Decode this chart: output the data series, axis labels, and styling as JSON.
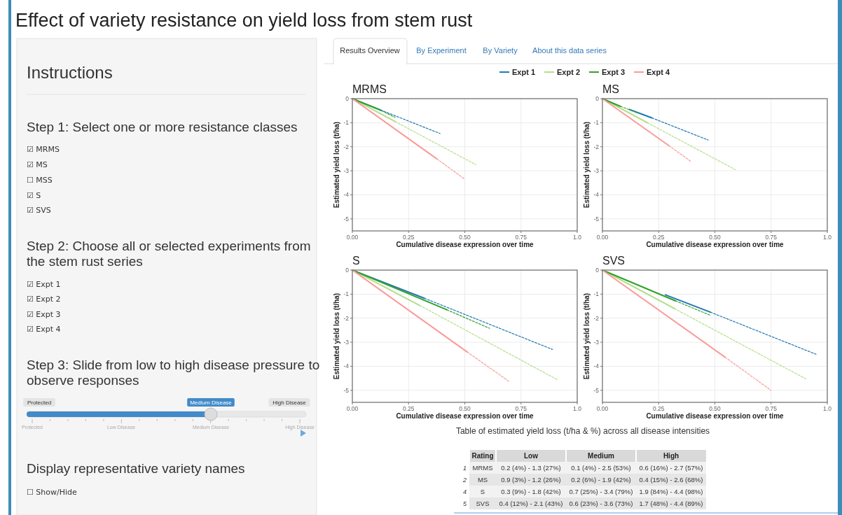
{
  "chart_data": [
    {
      "type": "other",
      "title": "Effect of variety resistance on yield loss from stem rust",
      "annotations": [
        "Instructions",
        "Step 1: Select one or more resistance classes",
        "☑ MRMS",
        "☑ MS",
        "☐ MSS",
        "☑ S",
        "☑ SVS",
        "Step 2: Choose all or selected experiments from the stem rust series",
        "☑ Expt 1",
        "☑ Expt 2",
        "☑ Expt 3",
        "☑ Expt 4",
        "Step 3: Slide from low to high disease pressure to observe responses",
        "Protected",
        "Medium Disease",
        "High Disease",
        "Protected",
        "Low Disease",
        "Medium Disease",
        "High Disease",
        "Display representative variety names",
        "☐ Show/Hide",
        "Results Overview",
        "By Experiment",
        "By Variety",
        "About this data series"
      ]
    },
    {
      "type": "line",
      "title": "MRMS",
      "xlabel": "Cumulative disease expression over time",
      "ylabel": "Estimated yield loss (t/ha)",
      "xlim": [
        0,
        1
      ],
      "ylim": [
        -5.5,
        0
      ],
      "xticks": [
        {
          "value": 0,
          "label": "0.00"
        },
        {
          "value": 0.25,
          "label": "0.25"
        },
        {
          "value": 0.5,
          "label": "0.50"
        },
        {
          "value": 0.75,
          "label": "0.75"
        },
        {
          "value": 1,
          "label": "1.0"
        }
      ],
      "yticks": [
        -5,
        -4,
        -3,
        -2,
        -1,
        0
      ],
      "grid": true,
      "legend": "top",
      "series": [
        {
          "name": "Expt 1",
          "color": "#1f78b4",
          "line_style": "solid",
          "x": [
            0,
            0.125
          ],
          "values": [
            0,
            -0.47
          ]
        },
        {
          "color": "#1f78b4",
          "line_style": "dashed",
          "x": [
            0.125,
            0.39
          ],
          "values": [
            -0.47,
            -1.45
          ]
        },
        {
          "name": "Expt 2",
          "color": "#b2df8a",
          "line_style": "solid",
          "x": [
            0,
            0.19
          ],
          "values": [
            0,
            -0.95
          ]
        },
        {
          "color": "#b2df8a",
          "line_style": "dashed",
          "x": [
            0.19,
            0.55
          ],
          "values": [
            -0.95,
            -2.75
          ]
        },
        {
          "name": "Expt 3",
          "color": "#33a02c",
          "line_style": "solid",
          "x": [
            0,
            0.13
          ],
          "values": [
            0,
            -0.5
          ]
        },
        {
          "color": "#33a02c",
          "line_style": "dashed",
          "x": [
            0.13,
            0.19
          ],
          "values": [
            -0.5,
            -0.78
          ]
        },
        {
          "name": "Expt 4",
          "color": "#fb9a99",
          "line_style": "solid",
          "x": [
            0,
            0.375
          ],
          "values": [
            0,
            -2.5
          ]
        },
        {
          "color": "#fb9a99",
          "line_style": "dashed",
          "x": [
            0.375,
            0.5
          ],
          "values": [
            -2.5,
            -3.35
          ]
        }
      ]
    },
    {
      "type": "line",
      "title": "MS",
      "xlabel": "Cumulative disease expression over time",
      "ylabel": "Estimated yield loss (t/ha)",
      "xlim": [
        0,
        1
      ],
      "ylim": [
        -5.5,
        0
      ],
      "xticks": [
        {
          "value": 0,
          "label": "0.00"
        },
        {
          "value": 0.25,
          "label": "0.25"
        },
        {
          "value": 0.5,
          "label": "0.50"
        },
        {
          "value": 0.75,
          "label": "0.75"
        },
        {
          "value": 1,
          "label": "1.0"
        }
      ],
      "yticks": [
        -5,
        -4,
        -3,
        -2,
        -1,
        0
      ],
      "grid": true,
      "series": [
        {
          "color": "#1f78b4",
          "line_style": "solid",
          "x": [
            0.12,
            0.22
          ],
          "values": [
            -0.45,
            -0.8
          ]
        },
        {
          "color": "#1f78b4",
          "line_style": "dashed",
          "x": [
            0.22,
            0.47
          ],
          "values": [
            -0.8,
            -1.72
          ]
        },
        {
          "color": "#b2df8a",
          "line_style": "solid",
          "x": [
            0,
            0.2
          ],
          "values": [
            0,
            -1.0
          ]
        },
        {
          "color": "#b2df8a",
          "line_style": "dashed",
          "x": [
            0.2,
            0.59
          ],
          "values": [
            -1.0,
            -2.95
          ]
        },
        {
          "color": "#33a02c",
          "line_style": "solid",
          "x": [
            0,
            0.08
          ],
          "values": [
            0,
            -0.32
          ]
        },
        {
          "color": "#33a02c",
          "line_style": "dashed",
          "x": [
            0.08,
            0.16
          ],
          "values": [
            -0.32,
            -0.6
          ]
        },
        {
          "color": "#fb9a99",
          "line_style": "solid",
          "x": [
            0,
            0.295
          ],
          "values": [
            0,
            -1.95
          ]
        },
        {
          "color": "#fb9a99",
          "line_style": "dashed",
          "x": [
            0.295,
            0.395
          ],
          "values": [
            -1.95,
            -2.62
          ]
        }
      ]
    },
    {
      "type": "line",
      "title": "S",
      "xlabel": "Cumulative disease expression over time",
      "ylabel": "Estimated yield loss (t/ha)",
      "xlim": [
        0,
        1
      ],
      "ylim": [
        -5.5,
        0
      ],
      "xticks": [
        {
          "value": 0,
          "label": "0.00"
        },
        {
          "value": 0.25,
          "label": "0.25"
        },
        {
          "value": 0.5,
          "label": "0.50"
        },
        {
          "value": 0.75,
          "label": "0.75"
        },
        {
          "value": 1,
          "label": "1.0"
        }
      ],
      "yticks": [
        -5,
        -4,
        -3,
        -2,
        -1,
        0
      ],
      "grid": true,
      "series": [
        {
          "color": "#1f78b4",
          "line_style": "solid",
          "x": [
            0,
            0.32
          ],
          "values": [
            0,
            -1.17
          ]
        },
        {
          "color": "#1f78b4",
          "line_style": "dashed",
          "x": [
            0.32,
            0.89
          ],
          "values": [
            -1.17,
            -3.3
          ]
        },
        {
          "color": "#b2df8a",
          "line_style": "solid",
          "x": [
            0,
            0.3
          ],
          "values": [
            0,
            -1.47
          ]
        },
        {
          "color": "#b2df8a",
          "line_style": "dashed",
          "x": [
            0.3,
            0.91
          ],
          "values": [
            -1.47,
            -4.55
          ]
        },
        {
          "color": "#33a02c",
          "line_style": "solid",
          "x": [
            0,
            0.42
          ],
          "values": [
            0,
            -1.65
          ]
        },
        {
          "color": "#33a02c",
          "line_style": "dashed",
          "x": [
            0.42,
            0.61
          ],
          "values": [
            -1.65,
            -2.42
          ]
        },
        {
          "color": "#fb9a99",
          "line_style": "solid",
          "x": [
            0,
            0.51
          ],
          "values": [
            0,
            -3.4
          ]
        },
        {
          "color": "#fb9a99",
          "line_style": "dashed",
          "x": [
            0.51,
            0.7
          ],
          "values": [
            -3.4,
            -4.65
          ]
        }
      ]
    },
    {
      "type": "line",
      "title": "SVS",
      "xlabel": "Cumulative disease expression over time",
      "ylabel": "Estimated yield loss (t/ha)",
      "xlim": [
        0,
        1
      ],
      "ylim": [
        -5.5,
        0
      ],
      "xticks": [
        {
          "value": 0,
          "label": "0.00"
        },
        {
          "value": 0.25,
          "label": "0.25"
        },
        {
          "value": 0.5,
          "label": "0.50"
        },
        {
          "value": 0.75,
          "label": "0.75"
        },
        {
          "value": 1,
          "label": "1.0"
        }
      ],
      "yticks": [
        -5,
        -4,
        -3,
        -2,
        -1,
        0
      ],
      "grid": true,
      "series": [
        {
          "color": "#1f78b4",
          "line_style": "solid",
          "x": [
            0.28,
            0.48
          ],
          "values": [
            -1.03,
            -1.75
          ]
        },
        {
          "color": "#1f78b4",
          "line_style": "dashed",
          "x": [
            0.48,
            0.95
          ],
          "values": [
            -1.75,
            -3.5
          ]
        },
        {
          "color": "#b2df8a",
          "line_style": "solid",
          "x": [
            0,
            0.32
          ],
          "values": [
            0,
            -1.6
          ]
        },
        {
          "color": "#b2df8a",
          "line_style": "dashed",
          "x": [
            0.32,
            0.91
          ],
          "values": [
            -1.6,
            -4.55
          ]
        },
        {
          "color": "#33a02c",
          "line_style": "solid",
          "x": [
            0,
            0.325
          ],
          "values": [
            0,
            -1.28
          ]
        },
        {
          "color": "#33a02c",
          "line_style": "dashed",
          "x": [
            0.325,
            0.48
          ],
          "values": [
            -1.28,
            -1.88
          ]
        },
        {
          "color": "#fb9a99",
          "line_style": "solid",
          "x": [
            0,
            0.545
          ],
          "values": [
            0,
            -3.62
          ]
        },
        {
          "color": "#fb9a99",
          "line_style": "dashed",
          "x": [
            0.545,
            0.75
          ],
          "values": [
            -3.62,
            -5.0
          ]
        }
      ]
    },
    {
      "type": "other",
      "title": "Table of estimated yield loss (t/ha & %) across all disease intensities",
      "categories": [
        "Rating",
        "Low",
        "Medium",
        "High"
      ],
      "y_categories": [
        "1",
        "2",
        "4",
        "5"
      ],
      "cell_labels": [
        [
          "MRMS",
          "0.2 (4%) - 1.3 (27%)",
          "0.1 (4%) - 2.5 (53%)",
          "0.6 (16%) - 2.7 (57%)"
        ],
        [
          "MS",
          "0.9 (3%) - 1.2 (26%)",
          "0.2 (6%) - 1.9 (42%)",
          "0.4 (15%) - 2.6 (68%)"
        ],
        [
          "S",
          "0.3 (9%) - 1.8 (42%)",
          "0.7 (25%) - 3.4 (79%)",
          "1.9 (84%) - 4.4 (98%)"
        ],
        [
          "SVS",
          "0.4 (12%) - 2.1 (43%)",
          "0.6 (23%) - 3.6 (73%)",
          "1.7 (48%) - 4.4 (89%)"
        ]
      ]
    }
  ]
}
